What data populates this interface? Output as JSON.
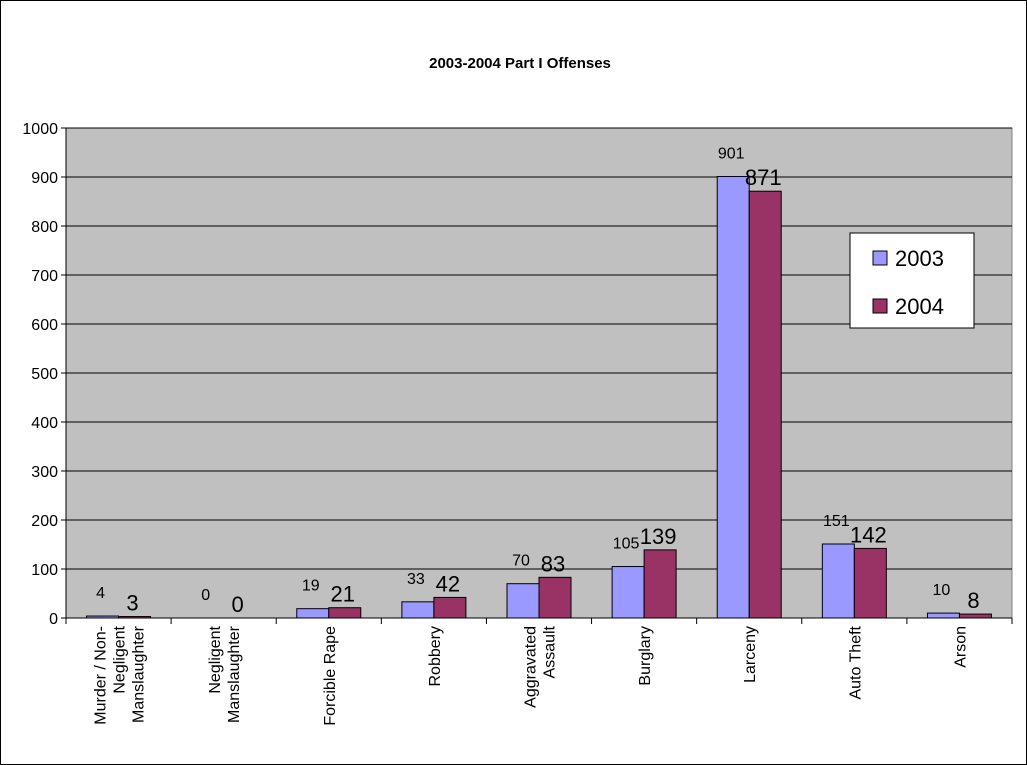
{
  "chart_data": {
    "type": "bar",
    "title": "2003-2004 Part I Offenses",
    "xlabel": "",
    "ylabel": "",
    "ylim": [
      0,
      1000
    ],
    "yticks": [
      0,
      100,
      200,
      300,
      400,
      500,
      600,
      700,
      800,
      900,
      1000
    ],
    "grid": true,
    "legend_position": "right",
    "plot_background": "#c0c0c0",
    "categories": [
      "Murder / Non-Negligent Manslaughter",
      "Negligent Manslaughter",
      "Forcible Rape",
      "Robbery",
      "Aggravated Assault",
      "Burglary",
      "Larceny",
      "Auto Theft",
      "Arson"
    ],
    "category_lines": [
      [
        "Murder / Non-",
        "Negligent",
        "Manslaughter"
      ],
      [
        "Negligent",
        "Manslaughter"
      ],
      [
        "Forcible Rape"
      ],
      [
        "Robbery"
      ],
      [
        "Aggravated",
        "Assault"
      ],
      [
        "Burglary"
      ],
      [
        "Larceny"
      ],
      [
        "Auto Theft"
      ],
      [
        "Arson"
      ]
    ],
    "series": [
      {
        "name": "2003",
        "color": "#9999ff",
        "values": [
          4,
          0,
          19,
          33,
          70,
          105,
          901,
          151,
          10
        ]
      },
      {
        "name": "2004",
        "color": "#993366",
        "values": [
          3,
          0,
          21,
          42,
          83,
          139,
          871,
          142,
          8
        ]
      }
    ]
  }
}
